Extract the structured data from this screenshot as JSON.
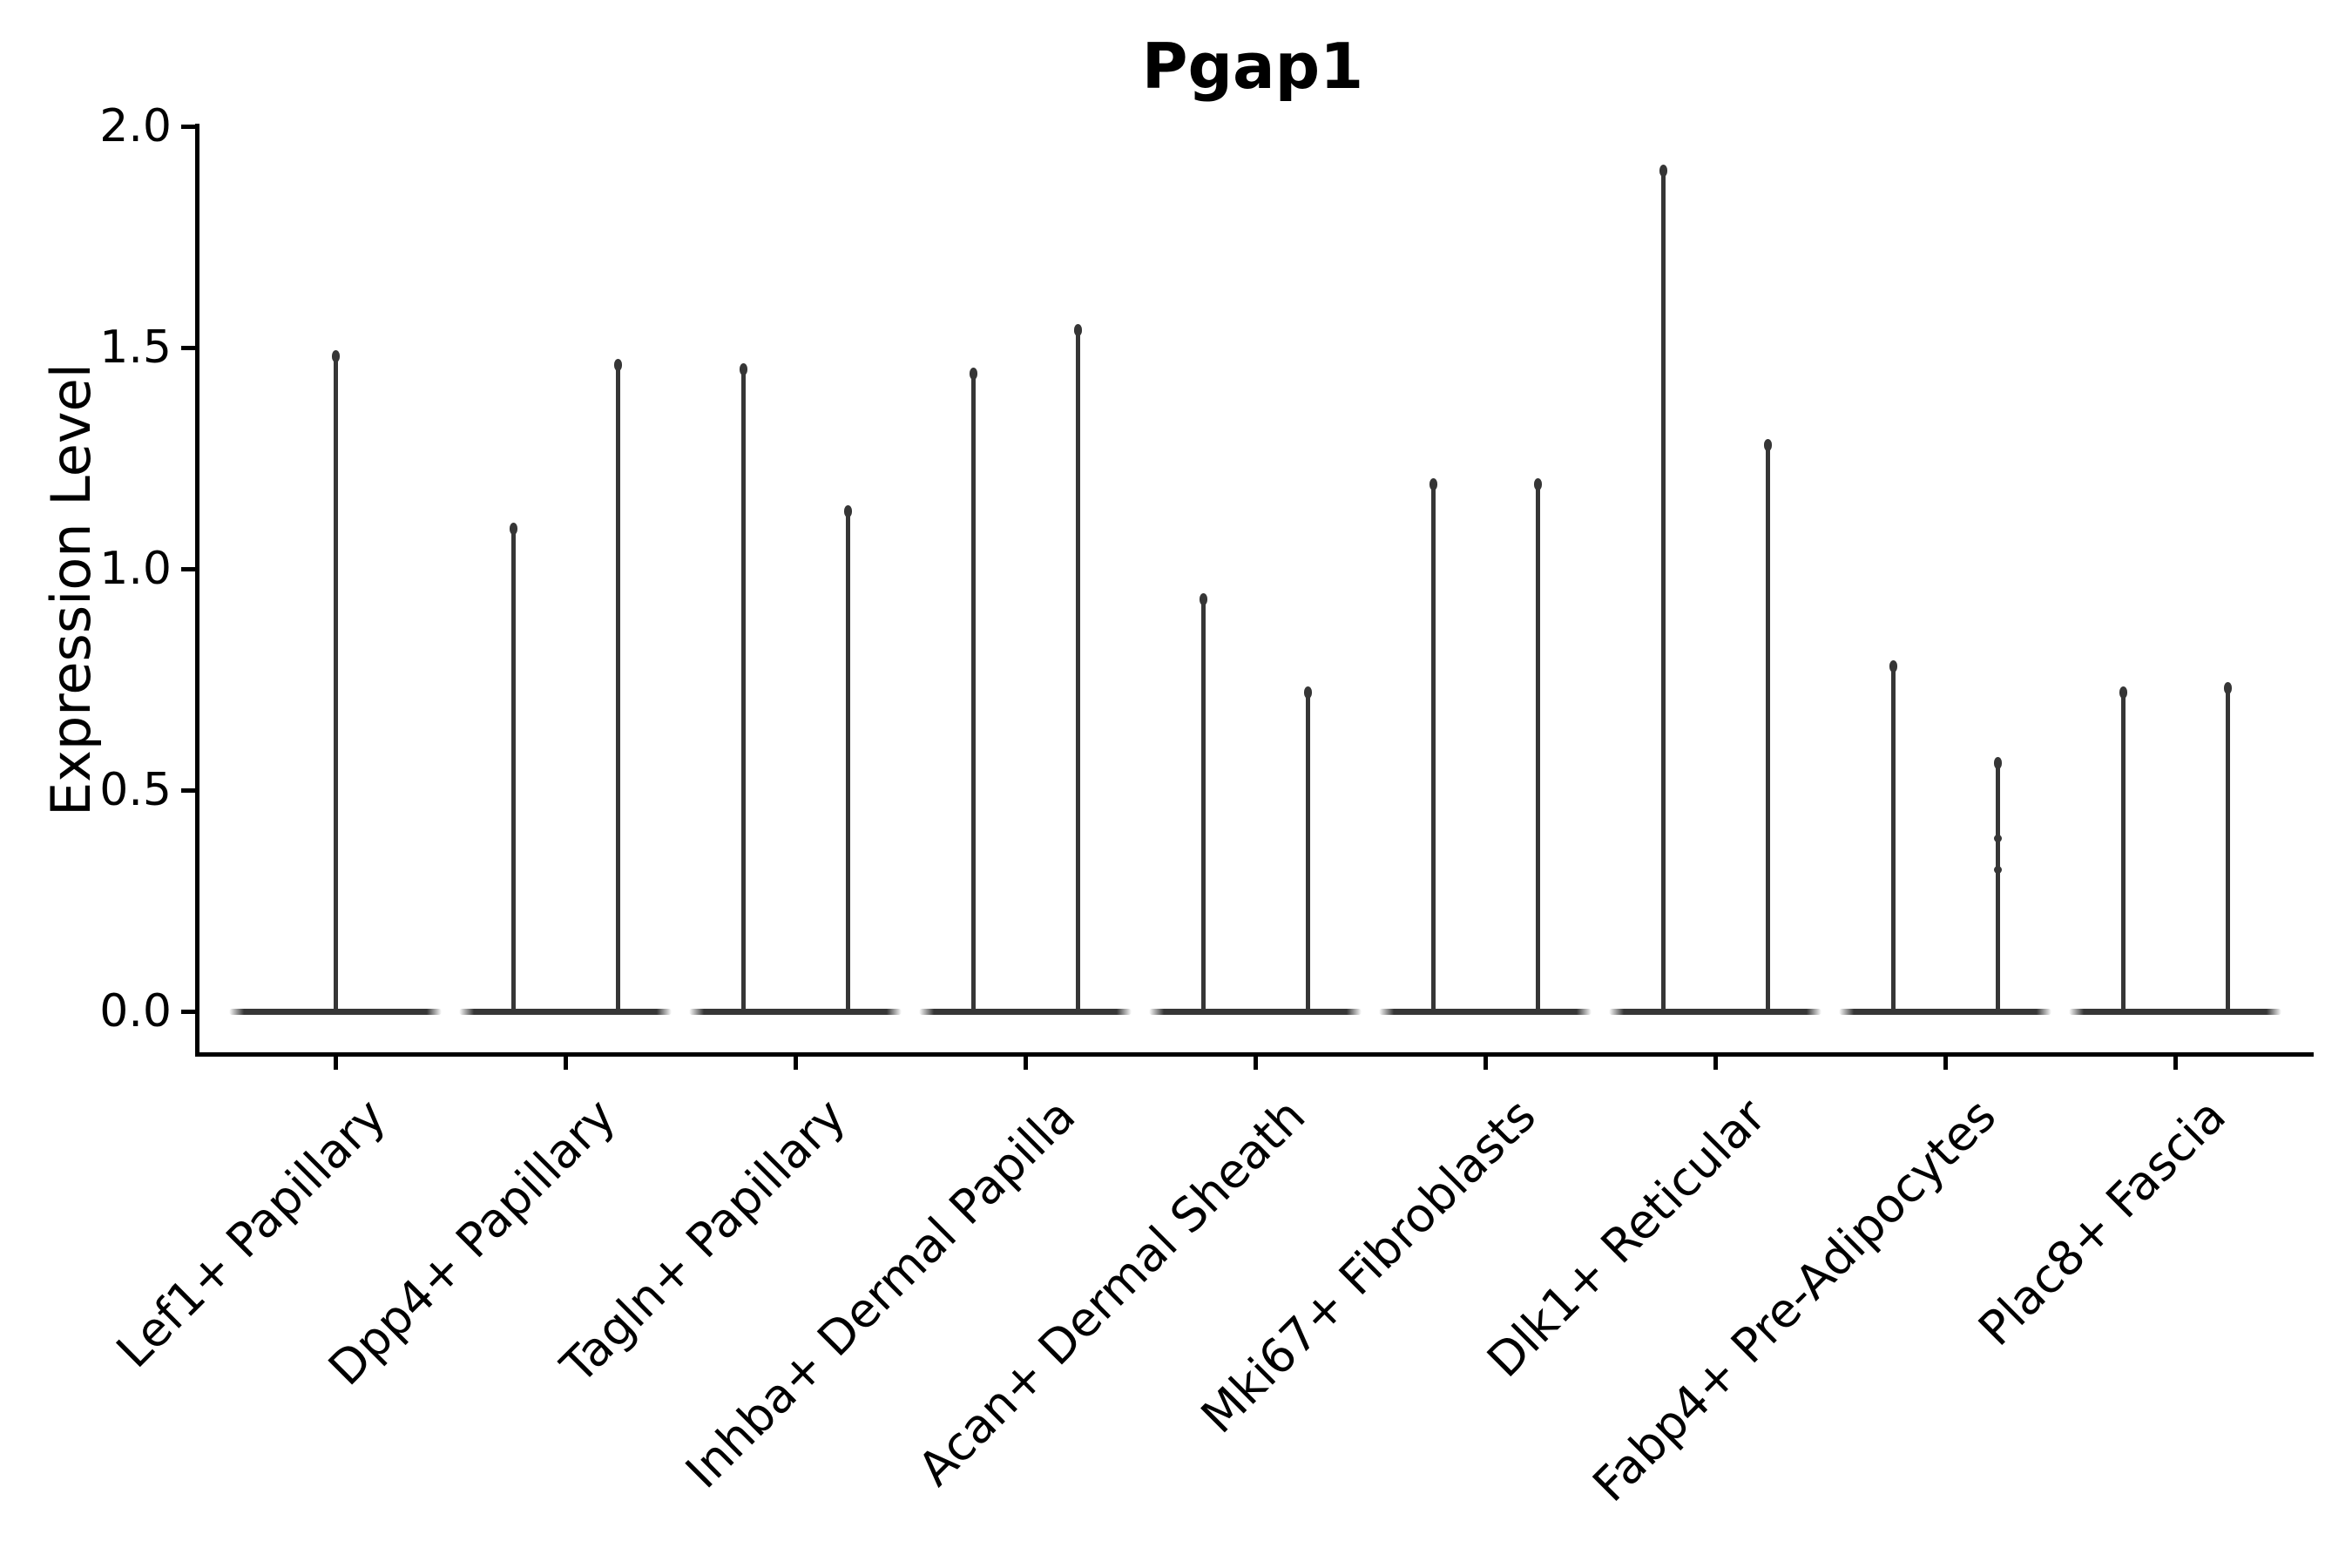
{
  "chart_data": {
    "type": "violin",
    "title": "Pgap1",
    "ylabel": "Expression Level",
    "xlabel": "",
    "ylim": [
      0.0,
      2.0
    ],
    "grid": false,
    "x_tick_rotation_deg": 45,
    "colors": {
      "violin": "#363636",
      "axis": "#000000",
      "text": "#000000",
      "background": "#ffffff"
    },
    "y_ticks": [
      {
        "label": "0.0",
        "value": 0.0
      },
      {
        "label": "0.5",
        "value": 0.5
      },
      {
        "label": "1.0",
        "value": 1.0
      },
      {
        "label": "1.5",
        "value": 1.5
      },
      {
        "label": "2.0",
        "value": 2.0
      }
    ],
    "categories": [
      "Lef1+ Papillary",
      "Dpp4+ Papillary",
      "Tagln+ Papillary",
      "Inhba+ Dermal Papilla",
      "Acan+ Dermal Sheath",
      "Mki67+ Fibroblasts",
      "Dlk1+ Reticular",
      "Fabp4+ Pre-Adipocytes",
      "Plac8+ Fascia"
    ],
    "violins": [
      {
        "category": "Lef1+ Papillary",
        "spikes": [
          {
            "pos": "center",
            "max": 1.49
          }
        ]
      },
      {
        "category": "Dpp4+ Papillary",
        "spikes": [
          {
            "pos": "left",
            "max": 1.1
          },
          {
            "pos": "right",
            "max": 1.47
          }
        ]
      },
      {
        "category": "Tagln+ Papillary",
        "spikes": [
          {
            "pos": "left",
            "max": 1.46
          },
          {
            "pos": "right",
            "max": 1.14
          }
        ]
      },
      {
        "category": "Inhba+ Dermal Papilla",
        "spikes": [
          {
            "pos": "left",
            "max": 1.45
          },
          {
            "pos": "right",
            "max": 1.55
          }
        ]
      },
      {
        "category": "Acan+ Dermal Sheath",
        "spikes": [
          {
            "pos": "left",
            "max": 0.94
          },
          {
            "pos": "right",
            "max": 0.73
          }
        ]
      },
      {
        "category": "Mki67+ Fibroblasts",
        "spikes": [
          {
            "pos": "left",
            "max": 1.2
          },
          {
            "pos": "right",
            "max": 1.2
          }
        ]
      },
      {
        "category": "Dlk1+ Reticular",
        "spikes": [
          {
            "pos": "left",
            "max": 1.91
          },
          {
            "pos": "right",
            "max": 1.29
          }
        ]
      },
      {
        "category": "Fabp4+ Pre-Adipocytes",
        "spikes": [
          {
            "pos": "left",
            "max": 0.79
          },
          {
            "pos": "right",
            "max": 0.57,
            "bumps": [
              0.39,
              0.32
            ]
          }
        ]
      },
      {
        "category": "Plac8+ Fascia",
        "spikes": [
          {
            "pos": "left",
            "max": 0.73
          },
          {
            "pos": "right",
            "max": 0.74
          }
        ]
      }
    ]
  }
}
